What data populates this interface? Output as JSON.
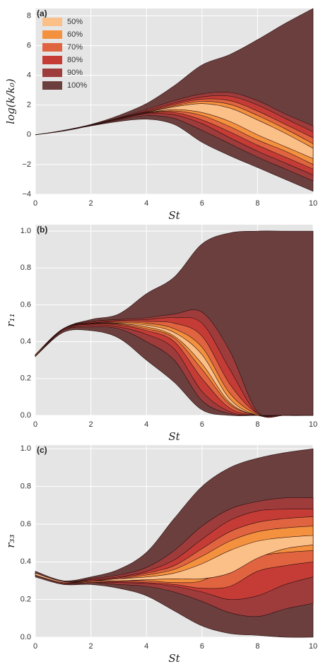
{
  "chart_data": [
    {
      "type": "fan",
      "panel_label": "(a)",
      "ylabel": "log(k/k₀)",
      "xlabel": "St",
      "x": [
        0,
        1,
        2,
        3,
        4,
        5,
        6,
        7,
        8,
        9,
        10
      ],
      "xlim": [
        0,
        10
      ],
      "ylim": [
        -4,
        8.5
      ],
      "xticks": [
        0,
        2,
        4,
        6,
        8,
        10
      ],
      "yticks": [
        {
          "value": -4,
          "label": "−4"
        },
        {
          "value": -2,
          "label": "−2"
        },
        0,
        2,
        4,
        6,
        8
      ],
      "grid": true,
      "legend": "upper left",
      "series": [
        {
          "name": "50%",
          "color": "#fbbf88",
          "upper": [
            0,
            0.27,
            0.65,
            1.09,
            1.5,
            1.88,
            2.1,
            1.8,
            1.0,
            0.1,
            -0.9
          ],
          "lower": [
            0,
            0.27,
            0.65,
            1.08,
            1.48,
            1.7,
            1.5,
            0.9,
            0,
            -0.8,
            -1.6
          ]
        },
        {
          "name": "60%",
          "color": "#f4913f",
          "upper": [
            0,
            0.27,
            0.66,
            1.09,
            1.52,
            1.95,
            2.25,
            2.05,
            1.3,
            0.4,
            -0.6
          ],
          "lower": [
            0,
            0.26,
            0.64,
            1.08,
            1.47,
            1.6,
            1.3,
            0.55,
            -0.35,
            -1.1,
            -2.0
          ]
        },
        {
          "name": "70%",
          "color": "#e0643f",
          "upper": [
            0,
            0.27,
            0.66,
            1.1,
            1.55,
            2.05,
            2.4,
            2.3,
            1.6,
            0.7,
            -0.2
          ],
          "lower": [
            0,
            0.26,
            0.64,
            1.07,
            1.45,
            1.5,
            1.0,
            0.2,
            -0.7,
            -1.5,
            -2.3
          ]
        },
        {
          "name": "80%",
          "color": "#c53c36",
          "upper": [
            0,
            0.28,
            0.67,
            1.12,
            1.6,
            2.15,
            2.55,
            2.6,
            2.0,
            1.1,
            0.2
          ],
          "lower": [
            0,
            0.26,
            0.63,
            1.05,
            1.4,
            1.35,
            0.75,
            -0.2,
            -1.1,
            -1.9,
            -2.7
          ]
        },
        {
          "name": "90%",
          "color": "#9e3c3c",
          "upper": [
            0,
            0.28,
            0.68,
            1.15,
            1.7,
            2.3,
            2.75,
            2.85,
            2.3,
            1.4,
            0.6
          ],
          "lower": [
            0,
            0.26,
            0.62,
            1.0,
            1.3,
            1.1,
            0.3,
            -0.6,
            -1.5,
            -2.3,
            -3.1
          ]
        },
        {
          "name": "100%",
          "color": "#6b3f3d",
          "upper": [
            0,
            0.3,
            0.7,
            1.3,
            2.1,
            3.3,
            4.7,
            5.4,
            6.4,
            7.5,
            8.5
          ],
          "lower": [
            0,
            0.25,
            0.6,
            0.9,
            1.05,
            0.7,
            -0.5,
            -1.4,
            -2.2,
            -3,
            -3.8
          ]
        }
      ]
    },
    {
      "type": "fan",
      "panel_label": "(b)",
      "ylabel": "r₁₁",
      "xlabel": "St",
      "x": [
        0,
        1,
        2,
        3,
        4,
        5,
        6,
        7,
        8,
        9,
        10
      ],
      "xlim": [
        0,
        10
      ],
      "ylim": [
        0,
        1.035
      ],
      "xticks": [
        0,
        2,
        4,
        6,
        8,
        10
      ],
      "yticks": [
        {
          "value": 0,
          "label": "0.0"
        },
        0.2,
        0.4,
        0.6,
        0.8,
        {
          "value": 1,
          "label": "1.0"
        }
      ],
      "grid": true,
      "series": [
        {
          "color": "#fbbf88",
          "upper": [
            0.33,
            0.47,
            0.5,
            0.5,
            0.49,
            0.45,
            0.33,
            0.09,
            0,
            0,
            0
          ],
          "lower": [
            0.325,
            0.468,
            0.498,
            0.497,
            0.48,
            0.43,
            0.28,
            0.07,
            0,
            0,
            0
          ]
        },
        {
          "color": "#f4913f",
          "upper": [
            0.33,
            0.47,
            0.5,
            0.505,
            0.5,
            0.47,
            0.37,
            0.12,
            0.005,
            0,
            0
          ],
          "lower": [
            0.32,
            0.468,
            0.497,
            0.495,
            0.47,
            0.42,
            0.25,
            0.06,
            0,
            0,
            0
          ]
        },
        {
          "color": "#e0643f",
          "upper": [
            0.33,
            0.47,
            0.5,
            0.51,
            0.51,
            0.5,
            0.43,
            0.17,
            0.01,
            0,
            0
          ],
          "lower": [
            0.32,
            0.465,
            0.495,
            0.49,
            0.46,
            0.4,
            0.2,
            0.04,
            0,
            0,
            0
          ]
        },
        {
          "color": "#c53c36",
          "upper": [
            0.33,
            0.47,
            0.505,
            0.515,
            0.52,
            0.53,
            0.5,
            0.25,
            0.01,
            0,
            0
          ],
          "lower": [
            0.32,
            0.46,
            0.49,
            0.48,
            0.44,
            0.36,
            0.13,
            0.02,
            0,
            0,
            0
          ]
        },
        {
          "color": "#9e3c3c",
          "upper": [
            0.33,
            0.47,
            0.51,
            0.52,
            0.53,
            0.55,
            0.56,
            0.35,
            0.02,
            0,
            0
          ],
          "lower": [
            0.32,
            0.46,
            0.48,
            0.47,
            0.4,
            0.3,
            0.08,
            0.01,
            0,
            0,
            0
          ]
        },
        {
          "color": "#6b3f3d",
          "upper": [
            0.33,
            0.47,
            0.52,
            0.55,
            0.66,
            0.75,
            0.93,
            0.99,
            1.0,
            1.0,
            1.0
          ],
          "lower": [
            0.32,
            0.45,
            0.46,
            0.42,
            0.3,
            0.18,
            0.03,
            0,
            0,
            0,
            0
          ]
        }
      ]
    },
    {
      "type": "fan",
      "panel_label": "(c)",
      "ylabel": "r₃₃",
      "xlabel": "St",
      "x": [
        0,
        1,
        2,
        3,
        4,
        5,
        6,
        7,
        8,
        9,
        10
      ],
      "xlim": [
        0,
        10
      ],
      "ylim": [
        0,
        1.02
      ],
      "xticks": [
        0,
        2,
        4,
        6,
        8,
        10
      ],
      "yticks": [
        {
          "value": 0,
          "label": "0.0"
        },
        0.2,
        0.4,
        0.6,
        0.8,
        {
          "value": 1,
          "label": "1.0"
        }
      ],
      "grid": true,
      "series": [
        {
          "color": "#fbbf88",
          "upper": [
            0.34,
            0.295,
            0.3,
            0.31,
            0.32,
            0.34,
            0.39,
            0.46,
            0.51,
            0.53,
            0.54
          ],
          "lower": [
            0.33,
            0.29,
            0.3,
            0.3,
            0.305,
            0.31,
            0.31,
            0.34,
            0.42,
            0.47,
            0.49
          ]
        },
        {
          "color": "#f4913f",
          "upper": [
            0.34,
            0.295,
            0.3,
            0.31,
            0.33,
            0.36,
            0.43,
            0.51,
            0.56,
            0.58,
            0.59
          ],
          "lower": [
            0.33,
            0.29,
            0.295,
            0.3,
            0.3,
            0.29,
            0.3,
            0.38,
            0.43,
            0.45,
            0.46
          ]
        },
        {
          "color": "#e0643f",
          "upper": [
            0.34,
            0.295,
            0.3,
            0.315,
            0.34,
            0.38,
            0.47,
            0.56,
            0.61,
            0.63,
            0.64
          ],
          "lower": [
            0.33,
            0.29,
            0.29,
            0.295,
            0.29,
            0.28,
            0.26,
            0.27,
            0.35,
            0.38,
            0.4
          ]
        },
        {
          "color": "#c53c36",
          "upper": [
            0.34,
            0.295,
            0.305,
            0.32,
            0.35,
            0.41,
            0.52,
            0.62,
            0.67,
            0.68,
            0.68
          ],
          "lower": [
            0.33,
            0.285,
            0.29,
            0.29,
            0.285,
            0.27,
            0.24,
            0.2,
            0.22,
            0.28,
            0.32
          ]
        },
        {
          "color": "#9e3c3c",
          "upper": [
            0.34,
            0.295,
            0.31,
            0.33,
            0.37,
            0.46,
            0.59,
            0.68,
            0.72,
            0.74,
            0.74
          ],
          "lower": [
            0.33,
            0.285,
            0.29,
            0.28,
            0.27,
            0.24,
            0.19,
            0.13,
            0.11,
            0.15,
            0.18
          ]
        },
        {
          "color": "#6b3f3d",
          "upper": [
            0.35,
            0.3,
            0.32,
            0.36,
            0.45,
            0.63,
            0.8,
            0.9,
            0.95,
            0.98,
            1.0
          ],
          "lower": [
            0.32,
            0.28,
            0.28,
            0.26,
            0.22,
            0.14,
            0.06,
            0.02,
            0.01,
            0,
            0
          ]
        }
      ]
    }
  ]
}
